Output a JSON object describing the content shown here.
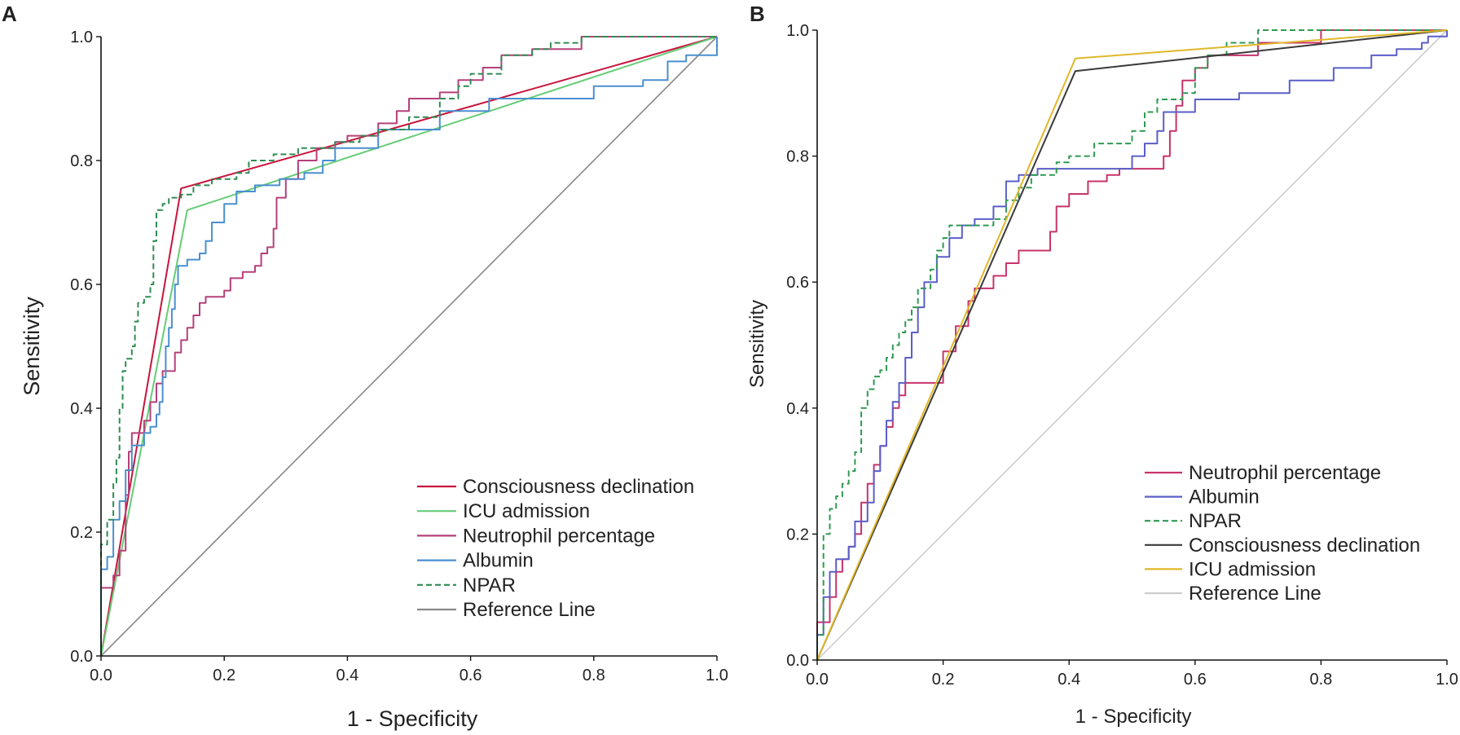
{
  "figure": {
    "background": "#ffffff"
  },
  "chart_data": [
    {
      "panel": "A",
      "type": "line",
      "title": "",
      "xlabel": "1 - Specificity",
      "ylabel": "Sensitivity",
      "xlim": [
        0,
        1
      ],
      "ylim": [
        0,
        1
      ],
      "xticks": [
        "0.0",
        "0.2",
        "0.4",
        "0.6",
        "0.8",
        "1.0"
      ],
      "yticks": [
        "0.0",
        "0.2",
        "0.4",
        "0.6",
        "0.8",
        "1.0"
      ],
      "grid": false,
      "legend_position": "bottom-right",
      "series": [
        {
          "name": "Consciousness declination",
          "color": "#c8143c",
          "dash": false,
          "step": false,
          "points": [
            [
              0,
              0
            ],
            [
              0.13,
              0.755
            ],
            [
              1,
              1
            ]
          ]
        },
        {
          "name": "ICU admission",
          "color": "#66cc77",
          "dash": false,
          "step": false,
          "points": [
            [
              0,
              0
            ],
            [
              0.14,
              0.72
            ],
            [
              1,
              1
            ]
          ]
        },
        {
          "name": "Neutrophil percentage",
          "color": "#b5407a",
          "dash": false,
          "step": true,
          "points": [
            [
              0,
              0
            ],
            [
              0,
              0.11
            ],
            [
              0.02,
              0.13
            ],
            [
              0.03,
              0.17
            ],
            [
              0.04,
              0.26
            ],
            [
              0.045,
              0.33
            ],
            [
              0.05,
              0.36
            ],
            [
              0.07,
              0.38
            ],
            [
              0.08,
              0.41
            ],
            [
              0.09,
              0.44
            ],
            [
              0.1,
              0.46
            ],
            [
              0.12,
              0.49
            ],
            [
              0.13,
              0.51
            ],
            [
              0.14,
              0.53
            ],
            [
              0.15,
              0.55
            ],
            [
              0.16,
              0.57
            ],
            [
              0.17,
              0.58
            ],
            [
              0.2,
              0.59
            ],
            [
              0.21,
              0.61
            ],
            [
              0.23,
              0.62
            ],
            [
              0.25,
              0.63
            ],
            [
              0.26,
              0.65
            ],
            [
              0.27,
              0.66
            ],
            [
              0.28,
              0.69
            ],
            [
              0.285,
              0.74
            ],
            [
              0.3,
              0.77
            ],
            [
              0.32,
              0.8
            ],
            [
              0.35,
              0.82
            ],
            [
              0.38,
              0.83
            ],
            [
              0.4,
              0.84
            ],
            [
              0.45,
              0.86
            ],
            [
              0.48,
              0.88
            ],
            [
              0.5,
              0.9
            ],
            [
              0.55,
              0.91
            ],
            [
              0.58,
              0.93
            ],
            [
              0.62,
              0.95
            ],
            [
              0.65,
              0.97
            ],
            [
              0.7,
              0.98
            ],
            [
              0.78,
              1
            ],
            [
              1,
              1
            ]
          ]
        },
        {
          "name": "Albumin",
          "color": "#4a8fd0",
          "dash": false,
          "step": true,
          "points": [
            [
              0,
              0
            ],
            [
              0,
              0.14
            ],
            [
              0.01,
              0.16
            ],
            [
              0.02,
              0.22
            ],
            [
              0.03,
              0.25
            ],
            [
              0.04,
              0.3
            ],
            [
              0.05,
              0.34
            ],
            [
              0.07,
              0.36
            ],
            [
              0.08,
              0.37
            ],
            [
              0.09,
              0.39
            ],
            [
              0.095,
              0.41
            ],
            [
              0.1,
              0.45
            ],
            [
              0.105,
              0.5
            ],
            [
              0.11,
              0.53
            ],
            [
              0.115,
              0.56
            ],
            [
              0.12,
              0.6
            ],
            [
              0.125,
              0.63
            ],
            [
              0.14,
              0.64
            ],
            [
              0.16,
              0.65
            ],
            [
              0.17,
              0.67
            ],
            [
              0.18,
              0.7
            ],
            [
              0.2,
              0.73
            ],
            [
              0.22,
              0.75
            ],
            [
              0.25,
              0.76
            ],
            [
              0.29,
              0.77
            ],
            [
              0.33,
              0.78
            ],
            [
              0.36,
              0.8
            ],
            [
              0.38,
              0.82
            ],
            [
              0.45,
              0.85
            ],
            [
              0.55,
              0.88
            ],
            [
              0.63,
              0.9
            ],
            [
              0.73,
              0.9
            ],
            [
              0.8,
              0.92
            ],
            [
              0.88,
              0.93
            ],
            [
              0.92,
              0.96
            ],
            [
              0.95,
              0.97
            ],
            [
              1,
              1
            ]
          ]
        },
        {
          "name": "NPAR",
          "color": "#2f8c52",
          "dash": true,
          "step": true,
          "points": [
            [
              0,
              0
            ],
            [
              0,
              0.18
            ],
            [
              0.01,
              0.22
            ],
            [
              0.02,
              0.28
            ],
            [
              0.025,
              0.32
            ],
            [
              0.03,
              0.4
            ],
            [
              0.035,
              0.46
            ],
            [
              0.04,
              0.48
            ],
            [
              0.05,
              0.5
            ],
            [
              0.055,
              0.54
            ],
            [
              0.06,
              0.57
            ],
            [
              0.07,
              0.58
            ],
            [
              0.08,
              0.6
            ],
            [
              0.085,
              0.67
            ],
            [
              0.09,
              0.72
            ],
            [
              0.1,
              0.73
            ],
            [
              0.11,
              0.74
            ],
            [
              0.13,
              0.745
            ],
            [
              0.15,
              0.76
            ],
            [
              0.18,
              0.77
            ],
            [
              0.22,
              0.78
            ],
            [
              0.24,
              0.8
            ],
            [
              0.28,
              0.81
            ],
            [
              0.32,
              0.82
            ],
            [
              0.38,
              0.83
            ],
            [
              0.42,
              0.84
            ],
            [
              0.45,
              0.85
            ],
            [
              0.5,
              0.87
            ],
            [
              0.55,
              0.9
            ],
            [
              0.58,
              0.92
            ],
            [
              0.6,
              0.94
            ],
            [
              0.65,
              0.97
            ],
            [
              0.7,
              0.98
            ],
            [
              0.73,
              0.99
            ],
            [
              0.78,
              1
            ],
            [
              1,
              1
            ]
          ]
        },
        {
          "name": "Reference Line",
          "color": "#888888",
          "dash": false,
          "step": false,
          "points": [
            [
              0,
              0
            ],
            [
              1,
              1
            ]
          ]
        }
      ]
    },
    {
      "panel": "B",
      "type": "line",
      "title": "",
      "xlabel": "1 - Specificity",
      "ylabel": "Sensitivity",
      "xlim": [
        0,
        1
      ],
      "ylim": [
        0,
        1
      ],
      "xticks": [
        "0.0",
        "0.2",
        "0.4",
        "0.6",
        "0.8",
        "1.0"
      ],
      "yticks": [
        "0.0",
        "0.2",
        "0.4",
        "0.6",
        "0.8",
        "1.0"
      ],
      "grid": false,
      "legend_position": "bottom-right",
      "series": [
        {
          "name": "Neutrophil percentage",
          "color": "#c8336a",
          "dash": false,
          "step": true,
          "points": [
            [
              0,
              0
            ],
            [
              0,
              0.06
            ],
            [
              0.02,
              0.1
            ],
            [
              0.03,
              0.14
            ],
            [
              0.04,
              0.16
            ],
            [
              0.05,
              0.18
            ],
            [
              0.06,
              0.2
            ],
            [
              0.07,
              0.25
            ],
            [
              0.08,
              0.28
            ],
            [
              0.09,
              0.31
            ],
            [
              0.1,
              0.34
            ],
            [
              0.11,
              0.37
            ],
            [
              0.12,
              0.4
            ],
            [
              0.13,
              0.42
            ],
            [
              0.14,
              0.44
            ],
            [
              0.2,
              0.49
            ],
            [
              0.22,
              0.53
            ],
            [
              0.24,
              0.57
            ],
            [
              0.25,
              0.59
            ],
            [
              0.28,
              0.61
            ],
            [
              0.3,
              0.63
            ],
            [
              0.32,
              0.65
            ],
            [
              0.37,
              0.68
            ],
            [
              0.38,
              0.72
            ],
            [
              0.4,
              0.74
            ],
            [
              0.43,
              0.76
            ],
            [
              0.46,
              0.77
            ],
            [
              0.48,
              0.78
            ],
            [
              0.55,
              0.8
            ],
            [
              0.56,
              0.84
            ],
            [
              0.57,
              0.88
            ],
            [
              0.58,
              0.92
            ],
            [
              0.6,
              0.94
            ],
            [
              0.62,
              0.96
            ],
            [
              0.7,
              0.98
            ],
            [
              0.8,
              1
            ],
            [
              1,
              1
            ]
          ]
        },
        {
          "name": "Albumin",
          "color": "#5a5fc8",
          "dash": false,
          "step": true,
          "points": [
            [
              0,
              0
            ],
            [
              0,
              0.04
            ],
            [
              0.01,
              0.1
            ],
            [
              0.02,
              0.14
            ],
            [
              0.03,
              0.16
            ],
            [
              0.05,
              0.18
            ],
            [
              0.06,
              0.22
            ],
            [
              0.08,
              0.25
            ],
            [
              0.09,
              0.3
            ],
            [
              0.1,
              0.34
            ],
            [
              0.11,
              0.38
            ],
            [
              0.12,
              0.41
            ],
            [
              0.13,
              0.44
            ],
            [
              0.14,
              0.48
            ],
            [
              0.15,
              0.52
            ],
            [
              0.16,
              0.56
            ],
            [
              0.17,
              0.6
            ],
            [
              0.19,
              0.64
            ],
            [
              0.21,
              0.67
            ],
            [
              0.23,
              0.69
            ],
            [
              0.25,
              0.7
            ],
            [
              0.28,
              0.72
            ],
            [
              0.3,
              0.76
            ],
            [
              0.32,
              0.77
            ],
            [
              0.35,
              0.78
            ],
            [
              0.5,
              0.8
            ],
            [
              0.52,
              0.82
            ],
            [
              0.54,
              0.84
            ],
            [
              0.55,
              0.87
            ],
            [
              0.6,
              0.89
            ],
            [
              0.67,
              0.9
            ],
            [
              0.75,
              0.92
            ],
            [
              0.82,
              0.94
            ],
            [
              0.88,
              0.96
            ],
            [
              0.92,
              0.97
            ],
            [
              0.96,
              0.98
            ],
            [
              0.97,
              0.99
            ],
            [
              1,
              1
            ]
          ]
        },
        {
          "name": "NPAR",
          "color": "#2f9a52",
          "dash": true,
          "step": true,
          "points": [
            [
              0,
              0
            ],
            [
              0,
              0.04
            ],
            [
              0.01,
              0.2
            ],
            [
              0.02,
              0.24
            ],
            [
              0.03,
              0.26
            ],
            [
              0.04,
              0.28
            ],
            [
              0.05,
              0.3
            ],
            [
              0.06,
              0.33
            ],
            [
              0.07,
              0.37
            ],
            [
              0.07,
              0.4
            ],
            [
              0.08,
              0.43
            ],
            [
              0.09,
              0.45
            ],
            [
              0.1,
              0.46
            ],
            [
              0.11,
              0.48
            ],
            [
              0.12,
              0.5
            ],
            [
              0.13,
              0.52
            ],
            [
              0.14,
              0.54
            ],
            [
              0.15,
              0.56
            ],
            [
              0.16,
              0.59
            ],
            [
              0.18,
              0.62
            ],
            [
              0.19,
              0.65
            ],
            [
              0.2,
              0.67
            ],
            [
              0.21,
              0.69
            ],
            [
              0.28,
              0.7
            ],
            [
              0.3,
              0.73
            ],
            [
              0.32,
              0.75
            ],
            [
              0.34,
              0.77
            ],
            [
              0.38,
              0.79
            ],
            [
              0.4,
              0.8
            ],
            [
              0.44,
              0.82
            ],
            [
              0.5,
              0.84
            ],
            [
              0.52,
              0.87
            ],
            [
              0.54,
              0.89
            ],
            [
              0.58,
              0.9
            ],
            [
              0.6,
              0.94
            ],
            [
              0.62,
              0.96
            ],
            [
              0.65,
              0.98
            ],
            [
              0.7,
              1
            ],
            [
              1,
              1
            ]
          ]
        },
        {
          "name": "Consciousness declination",
          "color": "#3a3a3a",
          "dash": false,
          "step": false,
          "points": [
            [
              0,
              0
            ],
            [
              0.41,
              0.935
            ],
            [
              1,
              1
            ]
          ]
        },
        {
          "name": "ICU admission",
          "color": "#e0b82a",
          "dash": false,
          "step": false,
          "points": [
            [
              0,
              0
            ],
            [
              0.41,
              0.955
            ],
            [
              1,
              1
            ]
          ]
        },
        {
          "name": "Reference Line",
          "color": "#cccccc",
          "dash": false,
          "step": false,
          "points": [
            [
              0,
              0
            ],
            [
              1,
              1
            ]
          ]
        }
      ]
    }
  ]
}
